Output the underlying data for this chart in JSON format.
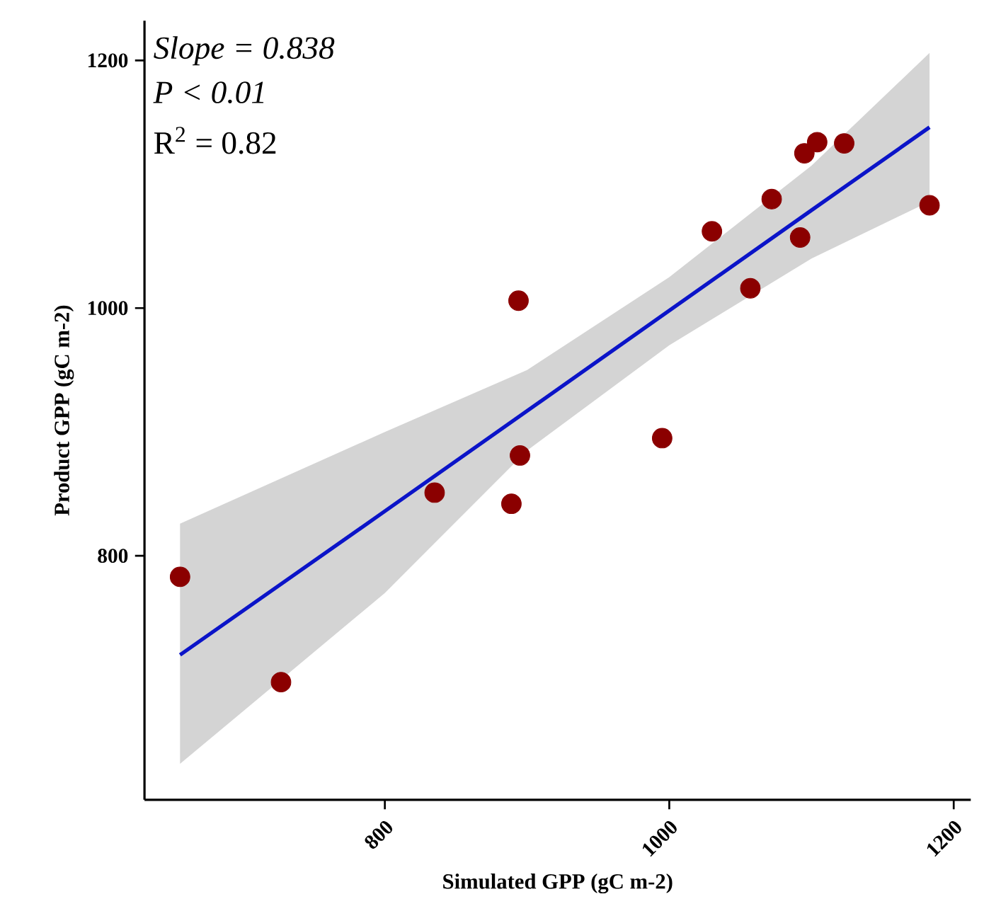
{
  "chart_data": {
    "type": "scatter",
    "xlabel": "Simulated GPP (gC m-2)",
    "ylabel": "Product GPP (gC m-2)",
    "annotations": [
      "*Slope = 0.838*",
      "*P < 0.01*",
      "R$^{2}$ = 0.82"
    ],
    "xlim": [
      631,
      1212
    ],
    "ylim": [
      603,
      1232
    ],
    "xticks": [
      800,
      1000,
      1200
    ],
    "yticks": [
      800,
      1000,
      1200
    ],
    "grid": false,
    "marker": "circle",
    "series": [
      {
        "type": "line",
        "marker": "none",
        "color": "#0b14c8",
        "x": [
          656,
          800,
          900,
          1000,
          1100,
          1183
        ],
        "values": [
          720,
          836,
          917,
          998,
          1079,
          1146
        ],
        "lower": [
          632,
          770,
          885,
          970,
          1040,
          1086
        ],
        "upper": [
          826,
          900,
          950,
          1025,
          1115,
          1206
        ]
      },
      {
        "color": "#8b0000",
        "x": [
          656,
          727,
          835,
          889,
          894,
          895,
          995,
          1030,
          1057,
          1072,
          1092,
          1095,
          1104,
          1123,
          1183
        ],
        "values": [
          783,
          698,
          851,
          842,
          1006,
          881,
          895,
          1062,
          1016,
          1088,
          1057,
          1125,
          1134,
          1133,
          1083
        ]
      }
    ]
  }
}
